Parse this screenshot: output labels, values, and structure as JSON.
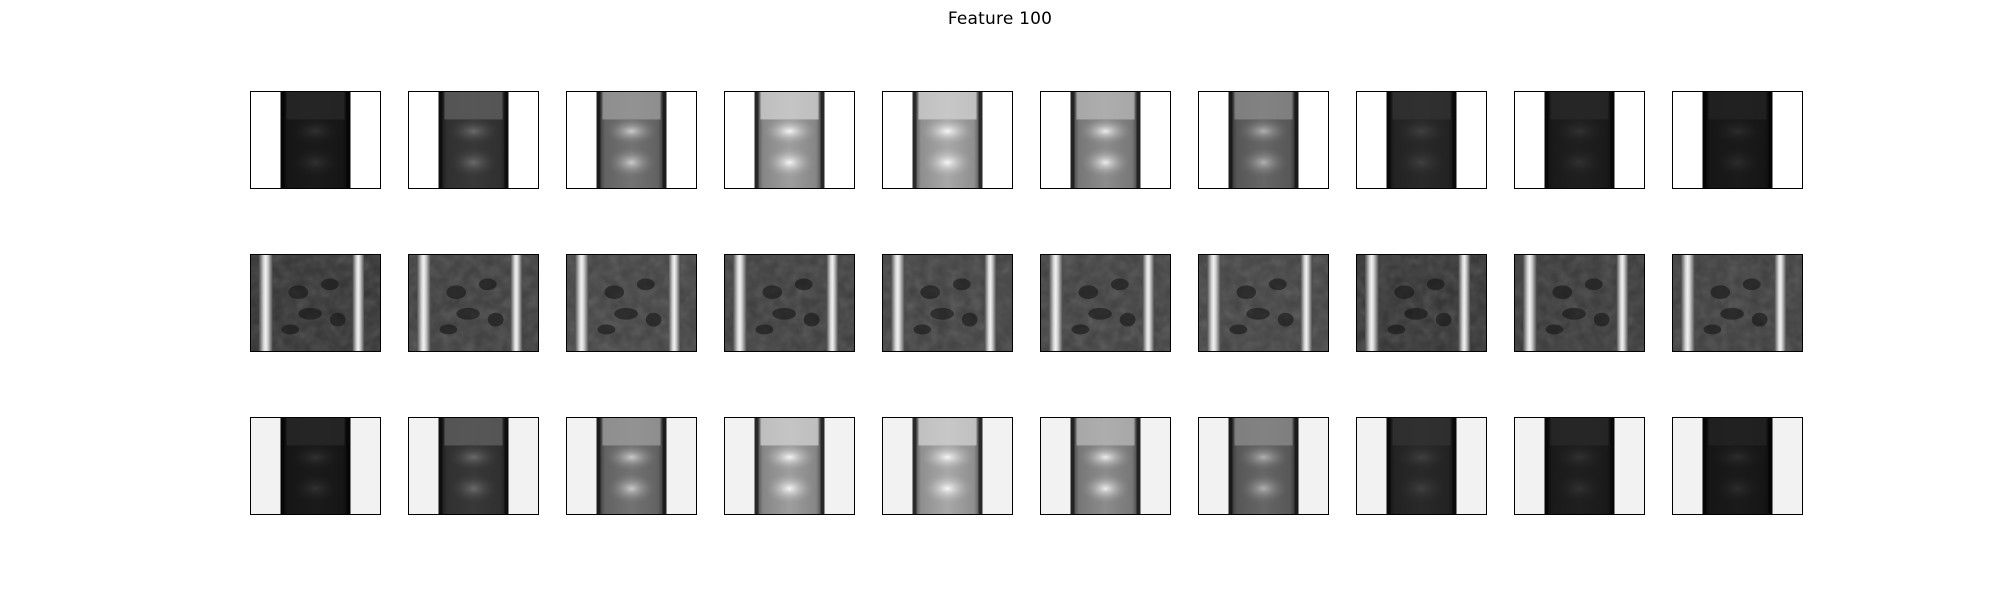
{
  "title": "Feature 100",
  "rows": [
    {
      "kind": "reconstruction",
      "background": "#ffffff",
      "panels": [
        {
          "base": 0.1,
          "top": 0.16,
          "glow": 0.1
        },
        {
          "base": 0.22,
          "top": 0.38,
          "glow": 0.22
        },
        {
          "base": 0.45,
          "top": 0.62,
          "glow": 0.38
        },
        {
          "base": 0.62,
          "top": 0.82,
          "glow": 0.5
        },
        {
          "base": 0.66,
          "top": 0.82,
          "glow": 0.5
        },
        {
          "base": 0.55,
          "top": 0.72,
          "glow": 0.42
        },
        {
          "base": 0.4,
          "top": 0.55,
          "glow": 0.32
        },
        {
          "base": 0.16,
          "top": 0.2,
          "glow": 0.1
        },
        {
          "base": 0.12,
          "top": 0.16,
          "glow": 0.08
        },
        {
          "base": 0.1,
          "top": 0.14,
          "glow": 0.08
        }
      ]
    },
    {
      "kind": "input",
      "background": "#2e2e2e",
      "panels": [
        {
          "shade": 0.2
        },
        {
          "shade": 0.24
        },
        {
          "shade": 0.26
        },
        {
          "shade": 0.24
        },
        {
          "shade": 0.25
        },
        {
          "shade": 0.25
        },
        {
          "shade": 0.26
        },
        {
          "shade": 0.2
        },
        {
          "shade": 0.22
        },
        {
          "shade": 0.24
        }
      ]
    },
    {
      "kind": "reconstruction",
      "background": "#f2f2f2",
      "panels": [
        {
          "base": 0.1,
          "top": 0.16,
          "glow": 0.1
        },
        {
          "base": 0.22,
          "top": 0.38,
          "glow": 0.22
        },
        {
          "base": 0.45,
          "top": 0.62,
          "glow": 0.38
        },
        {
          "base": 0.62,
          "top": 0.82,
          "glow": 0.5
        },
        {
          "base": 0.66,
          "top": 0.82,
          "glow": 0.5
        },
        {
          "base": 0.55,
          "top": 0.72,
          "glow": 0.42
        },
        {
          "base": 0.4,
          "top": 0.55,
          "glow": 0.32
        },
        {
          "base": 0.16,
          "top": 0.2,
          "glow": 0.1
        },
        {
          "base": 0.12,
          "top": 0.16,
          "glow": 0.08
        },
        {
          "base": 0.1,
          "top": 0.14,
          "glow": 0.08
        }
      ]
    }
  ]
}
